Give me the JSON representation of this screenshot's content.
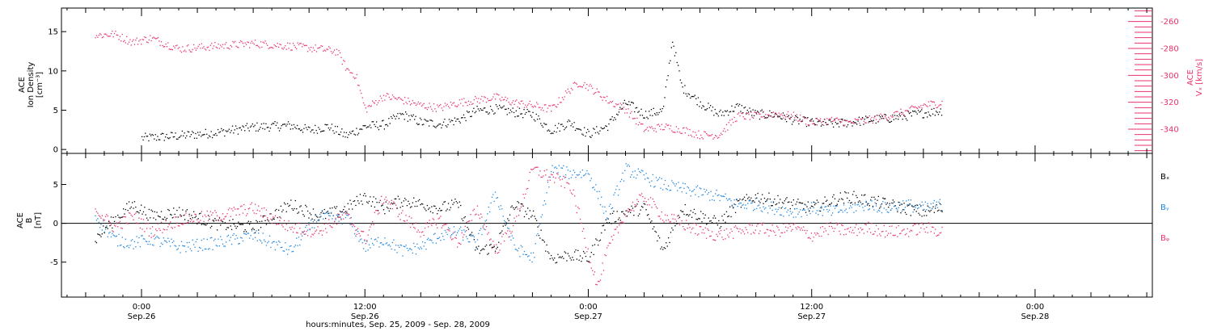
{
  "chart_data": [
    {
      "type": "scatter",
      "panel": "top",
      "ylabel_lines": [
        "ACE",
        "Ion Density",
        "[cm⁻³]"
      ],
      "ylim": [
        -0.5,
        18
      ],
      "y_ticks": [
        0,
        5,
        10,
        15
      ],
      "y_tick_labels": [
        "0",
        "5",
        "10",
        "15"
      ],
      "ylabel_right_lines": [
        "ACE",
        "Vₓ [km/s]"
      ],
      "ylim_right": [
        -358,
        -250
      ],
      "y_right_ticks": [
        -340,
        -320,
        -300,
        -280,
        -260
      ],
      "y_right_tick_labels": [
        "-340",
        "-320",
        "-300",
        "-280",
        "-260"
      ],
      "series": [
        {
          "axis": "left",
          "color": "#000000",
          "x_hours": [
            0.0,
            2.0,
            4.0,
            6.0,
            8.0,
            9.0,
            10.0,
            11.0,
            12.0,
            13.0,
            14.0,
            15.0,
            16.0,
            17.0,
            18.0,
            19.0,
            20.0,
            21.0,
            22.0,
            23.0,
            24.0,
            25.0,
            26.0,
            27.0,
            28.0,
            28.5,
            29.0,
            30.0,
            31.0,
            32.0,
            33.0,
            34.0,
            35.0,
            36.0,
            37.0,
            38.0,
            39.0,
            40.0,
            41.0,
            42.0,
            43.0
          ],
          "y": [
            1.5,
            1.8,
            2.2,
            2.9,
            3.1,
            2.5,
            3.0,
            1.8,
            3.0,
            3.2,
            4.5,
            3.5,
            3.3,
            3.8,
            5.0,
            5.2,
            4.8,
            4.5,
            2.5,
            3.5,
            2.0,
            3.0,
            6.0,
            4.5,
            5.0,
            14.0,
            8.0,
            6.0,
            4.5,
            5.5,
            4.5,
            4.5,
            3.8,
            3.5,
            3.3,
            3.5,
            3.8,
            4.0,
            4.3,
            4.7,
            5.0
          ]
        },
        {
          "axis": "right",
          "color": "#e8336b",
          "x_hours": [
            -2.5,
            -1.5,
            -0.5,
            0.5,
            2.0,
            4.0,
            6.0,
            8.0,
            9.5,
            10.5,
            11.0,
            11.5,
            12.0,
            13.0,
            14.0,
            15.0,
            16.0,
            17.0,
            18.0,
            19.0,
            20.0,
            21.0,
            22.0,
            23.0,
            23.5,
            24.0,
            25.0,
            26.0,
            27.0,
            28.0,
            29.0,
            30.0,
            31.0,
            32.0,
            33.0,
            34.0,
            35.0,
            36.0,
            37.0,
            38.0,
            39.0,
            40.0,
            41.0,
            42.0,
            43.0
          ],
          "y": [
            -270,
            -269,
            -275,
            -272,
            -280,
            -278,
            -276,
            -278,
            -280,
            -282,
            -295,
            -300,
            -325,
            -315,
            -318,
            -322,
            -324,
            -320,
            -318,
            -316,
            -320,
            -322,
            -325,
            -310,
            -305,
            -308,
            -318,
            -325,
            -340,
            -338,
            -340,
            -344,
            -344,
            -330,
            -330,
            -328,
            -330,
            -335,
            -333,
            -335,
            -333,
            -330,
            -327,
            -322,
            -320
          ]
        }
      ]
    },
    {
      "type": "scatter",
      "panel": "bottom",
      "ylabel_lines": [
        "ACE",
        "B",
        "[nT]"
      ],
      "ylim": [
        -9.5,
        9.0
      ],
      "y_ticks": [
        -5,
        0,
        5
      ],
      "y_tick_labels": [
        "-5",
        "0",
        "5"
      ],
      "zero_line": true,
      "legend": [
        {
          "label": "Bₓ",
          "color": "#000000"
        },
        {
          "label": "Bᵧ",
          "color": "#1f86df"
        },
        {
          "label": "Bᵩ",
          "color": "#e8336b"
        }
      ],
      "series": [
        {
          "name": "Bₓ",
          "color": "#000000",
          "x_hours": [
            -2.5,
            -1.5,
            -0.5,
            0.5,
            2.0,
            4.0,
            6.0,
            8.0,
            9.5,
            10.5,
            11.0,
            12.0,
            13.0,
            14.0,
            15.0,
            16.0,
            17.0,
            18.0,
            19.0,
            20.0,
            21.0,
            22.0,
            23.0,
            24.0,
            25.0,
            26.0,
            27.0,
            28.0,
            29.0,
            30.0,
            31.0,
            32.0,
            33.0,
            34.0,
            35.0,
            36.0,
            37.0,
            38.0,
            39.0,
            40.0,
            41.0,
            42.0,
            43.0
          ],
          "y": [
            -2.0,
            0.5,
            2.5,
            1.0,
            1.5,
            0.0,
            -0.5,
            2.5,
            1.0,
            1.5,
            2.0,
            3.5,
            2.0,
            3.0,
            2.5,
            2.0,
            2.5,
            -3.5,
            -3.0,
            2.5,
            1.0,
            -4.5,
            -4.0,
            -4.5,
            0.5,
            1.5,
            2.0,
            -3.5,
            2.0,
            1.0,
            0.0,
            2.5,
            3.5,
            3.0,
            2.5,
            2.0,
            3.0,
            3.5,
            3.0,
            2.5,
            2.0,
            1.5,
            2.0
          ]
        },
        {
          "name": "Bᵧ",
          "color": "#1f86df",
          "x_hours": [
            -2.5,
            -1.5,
            -0.5,
            0.5,
            2.0,
            4.0,
            6.0,
            8.0,
            9.5,
            10.5,
            11.0,
            12.0,
            13.0,
            14.0,
            15.0,
            16.0,
            17.0,
            18.0,
            19.0,
            20.0,
            21.0,
            22.0,
            23.0,
            24.0,
            25.0,
            26.0,
            27.0,
            28.0,
            29.0,
            30.0,
            31.0,
            32.0,
            33.0,
            34.0,
            35.0,
            36.0,
            37.0,
            38.0,
            39.0,
            40.0,
            41.0,
            42.0,
            43.0
          ],
          "y": [
            1.0,
            -2.0,
            -2.5,
            -2.0,
            -3.0,
            -2.5,
            -1.5,
            -3.5,
            1.0,
            0.5,
            1.0,
            -3.0,
            -2.0,
            -3.5,
            -3.0,
            -1.5,
            -1.0,
            -2.5,
            4.0,
            -3.0,
            -4.5,
            7.0,
            6.5,
            6.5,
            1.0,
            7.0,
            6.0,
            5.0,
            4.5,
            4.0,
            3.5,
            2.5,
            2.5,
            2.0,
            1.5,
            2.0,
            1.5,
            2.0,
            2.5,
            2.0,
            2.5,
            2.0,
            2.5
          ]
        },
        {
          "name": "Bᵩ",
          "color": "#e8336b",
          "x_hours": [
            -2.5,
            -1.5,
            -0.5,
            0.5,
            2.0,
            4.0,
            6.0,
            8.0,
            9.5,
            10.5,
            11.0,
            12.0,
            13.0,
            14.0,
            15.0,
            16.0,
            17.0,
            18.0,
            19.0,
            20.0,
            21.0,
            22.0,
            23.0,
            23.5,
            24.0,
            24.5,
            25.0,
            26.0,
            27.0,
            28.0,
            29.0,
            30.0,
            31.0,
            32.0,
            33.0,
            34.0,
            35.0,
            36.0,
            37.0,
            38.0,
            39.0,
            40.0,
            41.0,
            42.0,
            43.0
          ],
          "y": [
            2.0,
            -0.5,
            1.0,
            -1.0,
            0.5,
            1.0,
            2.0,
            -0.5,
            -1.0,
            0.5,
            1.0,
            -2.0,
            3.5,
            1.0,
            -1.0,
            0.5,
            -2.5,
            2.0,
            -3.5,
            0.0,
            7.0,
            6.0,
            5.0,
            1.0,
            -4.0,
            -8.0,
            -3.5,
            1.5,
            3.5,
            1.0,
            0.0,
            -1.0,
            -1.5,
            -1.0,
            -0.5,
            -1.0,
            -0.5,
            -1.5,
            -0.5,
            -1.0,
            -0.5,
            -1.0,
            -1.0,
            -0.5,
            -1.0
          ]
        }
      ]
    }
  ],
  "x_axis": {
    "tick_labels": [
      {
        "hours": 0,
        "time": "0:00",
        "date": "Sep.26"
      },
      {
        "hours": 12,
        "time": "12:00",
        "date": "Sep.26"
      },
      {
        "hours": 24,
        "time": "0:00",
        "date": "Sep.27"
      },
      {
        "hours": 36,
        "time": "12:00",
        "date": "Sep.27"
      },
      {
        "hours": 48,
        "time": "0:00",
        "date": "Sep.28"
      }
    ],
    "xlabel": "hours:minutes, Sep. 25, 2009 - Sep. 28, 2009"
  }
}
